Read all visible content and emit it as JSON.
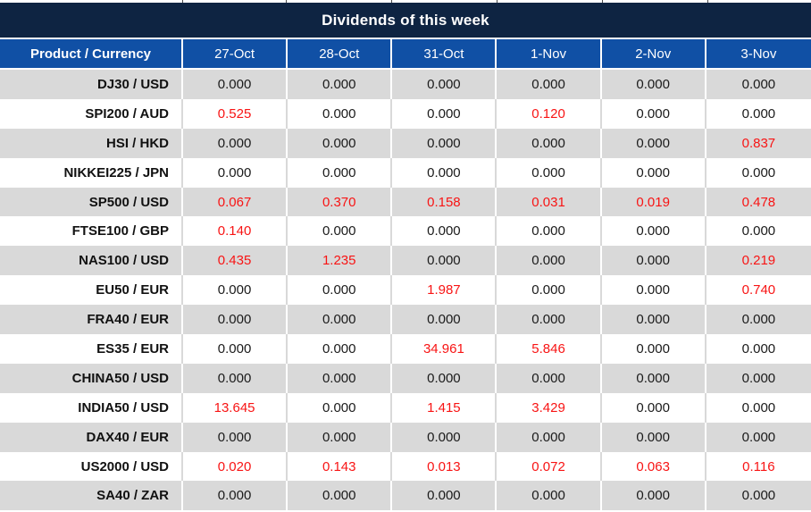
{
  "chart_data": {
    "type": "table",
    "title": "Dividends of this week",
    "columns": [
      "Product / Currency",
      "27-Oct",
      "28-Oct",
      "31-Oct",
      "1-Nov",
      "2-Nov",
      "3-Nov"
    ],
    "rows": [
      {
        "product": "DJ30 / USD",
        "values": [
          "0.000",
          "0.000",
          "0.000",
          "0.000",
          "0.000",
          "0.000"
        ],
        "red": [
          false,
          false,
          false,
          false,
          false,
          false
        ]
      },
      {
        "product": "SPI200 / AUD",
        "values": [
          "0.525",
          "0.000",
          "0.000",
          "0.120",
          "0.000",
          "0.000"
        ],
        "red": [
          true,
          false,
          false,
          true,
          false,
          false
        ]
      },
      {
        "product": "HSI / HKD",
        "values": [
          "0.000",
          "0.000",
          "0.000",
          "0.000",
          "0.000",
          "0.837"
        ],
        "red": [
          false,
          false,
          false,
          false,
          false,
          true
        ]
      },
      {
        "product": "NIKKEI225 / JPN",
        "values": [
          "0.000",
          "0.000",
          "0.000",
          "0.000",
          "0.000",
          "0.000"
        ],
        "red": [
          false,
          false,
          false,
          false,
          false,
          false
        ]
      },
      {
        "product": "SP500 / USD",
        "values": [
          "0.067",
          "0.370",
          "0.158",
          "0.031",
          "0.019",
          "0.478"
        ],
        "red": [
          true,
          true,
          true,
          true,
          true,
          true
        ]
      },
      {
        "product": "FTSE100 / GBP",
        "values": [
          "0.140",
          "0.000",
          "0.000",
          "0.000",
          "0.000",
          "0.000"
        ],
        "red": [
          true,
          false,
          false,
          false,
          false,
          false
        ]
      },
      {
        "product": "NAS100 / USD",
        "values": [
          "0.435",
          "1.235",
          "0.000",
          "0.000",
          "0.000",
          "0.219"
        ],
        "red": [
          true,
          true,
          false,
          false,
          false,
          true
        ]
      },
      {
        "product": "EU50 / EUR",
        "values": [
          "0.000",
          "0.000",
          "1.987",
          "0.000",
          "0.000",
          "0.740"
        ],
        "red": [
          false,
          false,
          true,
          false,
          false,
          true
        ]
      },
      {
        "product": "FRA40 / EUR",
        "values": [
          "0.000",
          "0.000",
          "0.000",
          "0.000",
          "0.000",
          "0.000"
        ],
        "red": [
          false,
          false,
          false,
          false,
          false,
          false
        ]
      },
      {
        "product": "ES35 / EUR",
        "values": [
          "0.000",
          "0.000",
          "34.961",
          "5.846",
          "0.000",
          "0.000"
        ],
        "red": [
          false,
          false,
          true,
          true,
          false,
          false
        ]
      },
      {
        "product": "CHINA50 / USD",
        "values": [
          "0.000",
          "0.000",
          "0.000",
          "0.000",
          "0.000",
          "0.000"
        ],
        "red": [
          false,
          false,
          false,
          false,
          false,
          false
        ]
      },
      {
        "product": "INDIA50 / USD",
        "values": [
          "13.645",
          "0.000",
          "1.415",
          "3.429",
          "0.000",
          "0.000"
        ],
        "red": [
          true,
          false,
          true,
          true,
          false,
          false
        ]
      },
      {
        "product": "DAX40 / EUR",
        "values": [
          "0.000",
          "0.000",
          "0.000",
          "0.000",
          "0.000",
          "0.000"
        ],
        "red": [
          false,
          false,
          false,
          false,
          false,
          false
        ]
      },
      {
        "product": "US2000 / USD",
        "values": [
          "0.020",
          "0.143",
          "0.013",
          "0.072",
          "0.063",
          "0.116"
        ],
        "red": [
          true,
          true,
          true,
          true,
          true,
          true
        ]
      },
      {
        "product": "SA40 / ZAR",
        "values": [
          "0.000",
          "0.000",
          "0.000",
          "0.000",
          "0.000",
          "0.000"
        ],
        "red": [
          false,
          false,
          false,
          false,
          false,
          false
        ]
      }
    ],
    "layout": {
      "zero_value_color_rule": "zero dividends shown in black, non-zero dividends shown in red",
      "row_striping": "first data row gray, alternating gray/white"
    }
  },
  "colors": {
    "title_bg": "#0e2442",
    "header_bg": "#1050a5",
    "row_alt_bg": "#d9d9d9",
    "row_bg": "#ffffff",
    "red_value": "#f81414",
    "text": "#1a1a1a"
  }
}
